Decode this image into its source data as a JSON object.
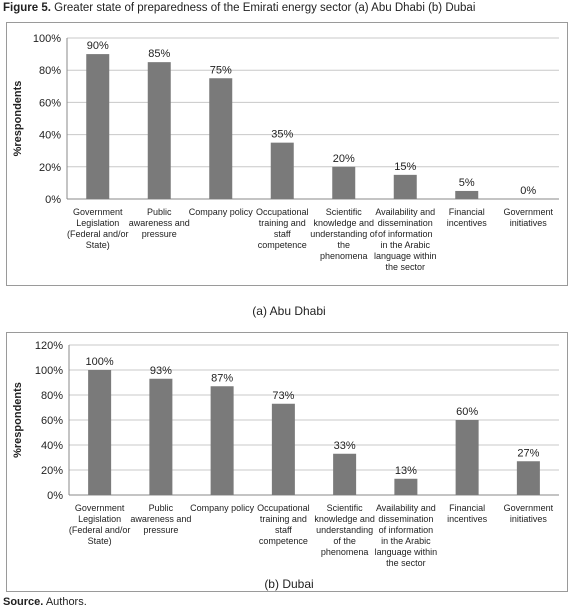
{
  "figure": {
    "label": "Figure 5.",
    "title": "Greater state of preparedness of the Emirati energy sector (a) Abu Dhabi (b) Dubai"
  },
  "source": {
    "label": "Source.",
    "text": "Authors."
  },
  "colors": {
    "bar": "#7a7a7a",
    "grid": "#c8c8c8",
    "axis": "#888888",
    "text": "#222222"
  },
  "chart_data": [
    {
      "type": "bar",
      "caption": "(a) Abu Dhabi",
      "ylabel": "%respondents",
      "ylim": [
        0,
        100
      ],
      "yticks": [
        "0%",
        "20%",
        "40%",
        "60%",
        "80%",
        "100%"
      ],
      "grid": true,
      "categories": [
        "Government Legislation (Federal and/or State)",
        "Public awareness and pressure",
        "Company policy",
        "Occupational training and staff competence",
        "Scientific knowledge and understanding of the phenomena",
        "Availability and dissemination of information in the Arabic language within the sector",
        "Financial incentives",
        "Government initiatives"
      ],
      "category_lines": [
        [
          "Government",
          "Legislation",
          "(Federal and/or",
          "State)"
        ],
        [
          "Public",
          "awareness and",
          "pressure"
        ],
        [
          "Company policy"
        ],
        [
          "Occupational",
          "training and",
          "staff",
          "competence"
        ],
        [
          "Scientific",
          "knowledge and",
          "understanding of",
          "the",
          "phenomena"
        ],
        [
          "Availability and",
          "dissemination",
          "of information",
          "in the Arabic",
          "language within",
          "the sector"
        ],
        [
          "Financial",
          "incentives"
        ],
        [
          "Government",
          "initiatives"
        ]
      ],
      "values": [
        90,
        85,
        75,
        35,
        20,
        15,
        5,
        0
      ],
      "data_labels": [
        "90%",
        "85%",
        "75%",
        "35%",
        "20%",
        "15%",
        "5%",
        "0%"
      ]
    },
    {
      "type": "bar",
      "caption": "(b) Dubai",
      "ylabel": "%respondents",
      "ylim": [
        0,
        120
      ],
      "yticks": [
        "0%",
        "20%",
        "40%",
        "60%",
        "80%",
        "100%",
        "120%"
      ],
      "grid": true,
      "categories": [
        "Government Legislation (Federal and/or State)",
        "Public awareness and pressure",
        "Company policy",
        "Occupational training and staff competence",
        "Scientific knowledge and understanding of the phenomena",
        "Availability and dissemination of information in the Arabic language within the sector",
        "Financial incentives",
        "Government initiatives"
      ],
      "category_lines": [
        [
          "Government",
          "Legislation",
          "(Federal and/or",
          "State)"
        ],
        [
          "Public",
          "awareness and",
          "pressure"
        ],
        [
          "Company policy"
        ],
        [
          "Occupational",
          "training and",
          "staff",
          "competence"
        ],
        [
          "Scientific",
          "knowledge and",
          "understanding",
          "of the",
          "phenomena"
        ],
        [
          "Availability and",
          "dissemination",
          "of information",
          "in the Arabic",
          "language within",
          "the sector"
        ],
        [
          "Financial",
          "incentives"
        ],
        [
          "Government",
          "initiatives"
        ]
      ],
      "values": [
        100,
        93,
        87,
        73,
        33,
        13,
        60,
        27
      ],
      "data_labels": [
        "100%",
        "93%",
        "87%",
        "73%",
        "33%",
        "13%",
        "60%",
        "27%"
      ]
    }
  ]
}
